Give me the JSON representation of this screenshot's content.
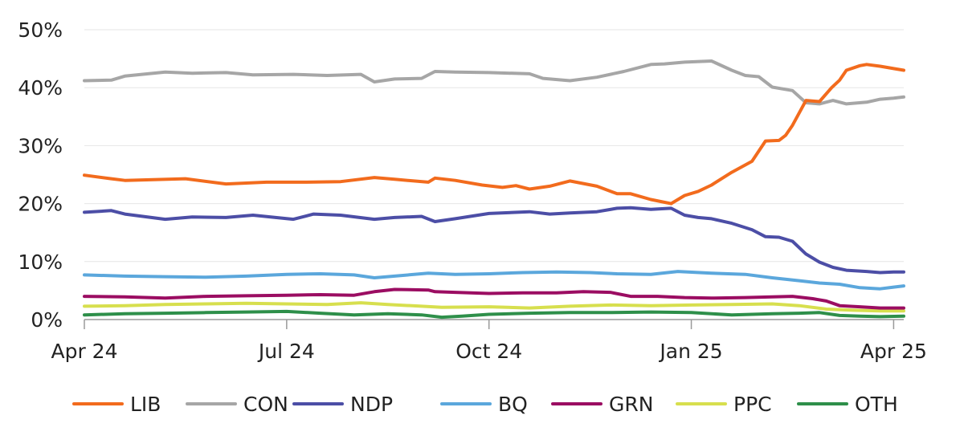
{
  "chart_data": {
    "type": "line",
    "title": "",
    "xlabel": "",
    "ylabel": "",
    "ylim": [
      0,
      50
    ],
    "y_ticks": [
      {
        "value": 0,
        "label": "0%"
      },
      {
        "value": 10,
        "label": "10%"
      },
      {
        "value": 20,
        "label": "20%"
      },
      {
        "value": 30,
        "label": "30%"
      },
      {
        "value": 40,
        "label": "40%"
      },
      {
        "value": 50,
        "label": "50%"
      }
    ],
    "x_unit": "months since Apr 2024",
    "xlim": [
      0,
      12.15
    ],
    "x_ticks": [
      {
        "value": 0,
        "label": "Apr 24"
      },
      {
        "value": 3,
        "label": "Jul 24"
      },
      {
        "value": 6,
        "label": "Oct 24"
      },
      {
        "value": 9,
        "label": "Jan 25"
      },
      {
        "value": 12,
        "label": "Apr 25"
      }
    ],
    "grid": true,
    "legend": "bottom",
    "series": [
      {
        "name": "LIB",
        "color": "#f26b1d",
        "x": [
          0,
          0.4,
          0.6,
          1.5,
          2.1,
          2.7,
          3.3,
          3.8,
          4.3,
          4.6,
          5.1,
          5.2,
          5.5,
          5.9,
          6.2,
          6.4,
          6.6,
          6.9,
          7.2,
          7.6,
          7.9,
          8.1,
          8.4,
          8.7,
          8.9,
          9.1,
          9.3,
          9.6,
          9.9,
          10.1,
          10.3,
          10.4,
          10.5,
          10.7,
          10.9,
          11.08,
          11.2,
          11.3,
          11.5,
          11.6,
          11.8,
          12.0,
          12.15
        ],
        "y": [
          24.9,
          24.3,
          24.0,
          24.3,
          23.4,
          23.7,
          23.7,
          23.8,
          24.5,
          24.2,
          23.7,
          24.4,
          24.0,
          23.2,
          22.8,
          23.1,
          22.5,
          23.0,
          23.9,
          23.0,
          21.7,
          21.7,
          20.7,
          20.0,
          21.4,
          22.1,
          23.2,
          25.4,
          27.3,
          30.8,
          30.9,
          31.8,
          33.5,
          37.8,
          37.6,
          40.0,
          41.3,
          43.0,
          43.8,
          44.0,
          43.7,
          43.3,
          43.0
        ]
      },
      {
        "name": "CON",
        "color": "#a6a6a6",
        "x": [
          0,
          0.4,
          0.6,
          1.2,
          1.6,
          2.1,
          2.5,
          3.1,
          3.6,
          4.1,
          4.3,
          4.6,
          5.0,
          5.2,
          5.5,
          6.0,
          6.6,
          6.8,
          7.2,
          7.6,
          8.0,
          8.4,
          8.6,
          8.9,
          9.3,
          9.6,
          9.8,
          10.0,
          10.2,
          10.5,
          10.7,
          10.9,
          11.1,
          11.3,
          11.6,
          11.8,
          12.0,
          12.15
        ],
        "y": [
          41.2,
          41.3,
          42.0,
          42.7,
          42.5,
          42.6,
          42.2,
          42.3,
          42.1,
          42.3,
          41.0,
          41.5,
          41.6,
          42.8,
          42.7,
          42.6,
          42.4,
          41.6,
          41.2,
          41.8,
          42.8,
          44.0,
          44.1,
          44.4,
          44.6,
          43.0,
          42.1,
          41.9,
          40.1,
          39.5,
          37.4,
          37.2,
          37.8,
          37.2,
          37.5,
          38.0,
          38.2,
          38.4
        ]
      },
      {
        "name": "NDP",
        "color": "#4c4ea6",
        "x": [
          0,
          0.4,
          0.6,
          1.2,
          1.6,
          2.1,
          2.5,
          3.1,
          3.4,
          3.8,
          4.3,
          4.6,
          5.0,
          5.2,
          5.5,
          6.0,
          6.6,
          6.9,
          7.2,
          7.6,
          7.9,
          8.1,
          8.4,
          8.7,
          8.9,
          9.1,
          9.3,
          9.6,
          9.9,
          10.1,
          10.3,
          10.5,
          10.7,
          10.9,
          11.1,
          11.3,
          11.6,
          11.8,
          12.0,
          12.15
        ],
        "y": [
          18.5,
          18.8,
          18.2,
          17.3,
          17.7,
          17.6,
          18.0,
          17.3,
          18.2,
          18.0,
          17.3,
          17.6,
          17.8,
          16.9,
          17.4,
          18.3,
          18.6,
          18.2,
          18.4,
          18.6,
          19.2,
          19.3,
          19.0,
          19.2,
          18.0,
          17.6,
          17.4,
          16.6,
          15.5,
          14.3,
          14.2,
          13.5,
          11.3,
          9.9,
          9.0,
          8.5,
          8.3,
          8.1,
          8.2,
          8.2
        ]
      },
      {
        "name": "BQ",
        "color": "#5ba7dc",
        "x": [
          0,
          0.6,
          1.2,
          1.8,
          2.4,
          3.0,
          3.5,
          4.0,
          4.3,
          4.6,
          5.1,
          5.5,
          6.0,
          6.5,
          7.0,
          7.5,
          7.9,
          8.4,
          8.8,
          9.3,
          9.8,
          10.2,
          10.6,
          10.9,
          11.2,
          11.5,
          11.8,
          12.0,
          12.15
        ],
        "y": [
          7.7,
          7.5,
          7.4,
          7.3,
          7.5,
          7.8,
          7.9,
          7.7,
          7.2,
          7.5,
          8.0,
          7.8,
          7.9,
          8.1,
          8.2,
          8.1,
          7.9,
          7.8,
          8.3,
          8.0,
          7.8,
          7.2,
          6.7,
          6.3,
          6.1,
          5.5,
          5.3,
          5.6,
          5.8
        ]
      },
      {
        "name": "GRN",
        "color": "#9b0d62",
        "x": [
          0,
          0.6,
          1.2,
          1.8,
          2.4,
          3.0,
          3.5,
          4.0,
          4.3,
          4.6,
          5.1,
          5.2,
          5.5,
          6.0,
          6.5,
          7.0,
          7.4,
          7.8,
          8.1,
          8.5,
          8.9,
          9.3,
          9.8,
          10.2,
          10.5,
          10.8,
          11.0,
          11.2,
          11.5,
          11.8,
          12.15
        ],
        "y": [
          4.0,
          3.9,
          3.7,
          4.0,
          4.1,
          4.2,
          4.3,
          4.2,
          4.8,
          5.2,
          5.1,
          4.8,
          4.7,
          4.5,
          4.6,
          4.6,
          4.8,
          4.7,
          4.0,
          4.0,
          3.8,
          3.7,
          3.8,
          3.9,
          4.0,
          3.6,
          3.2,
          2.4,
          2.2,
          2.0,
          2.0
        ]
      },
      {
        "name": "PPC",
        "color": "#d7df4e",
        "x": [
          0,
          0.6,
          1.2,
          1.8,
          2.4,
          3.0,
          3.6,
          4.1,
          4.5,
          5.0,
          5.3,
          6.0,
          6.6,
          7.2,
          7.8,
          8.4,
          9.0,
          9.6,
          10.2,
          10.6,
          11.0,
          11.4,
          11.8,
          12.15
        ],
        "y": [
          2.3,
          2.4,
          2.6,
          2.7,
          2.8,
          2.7,
          2.6,
          2.9,
          2.6,
          2.3,
          2.1,
          2.2,
          2.0,
          2.3,
          2.5,
          2.4,
          2.5,
          2.6,
          2.7,
          2.4,
          1.8,
          1.6,
          1.5,
          1.5
        ]
      },
      {
        "name": "OTH",
        "color": "#2e8f4a",
        "x": [
          0,
          0.6,
          1.2,
          1.8,
          2.4,
          3.0,
          3.5,
          4.0,
          4.5,
          5.0,
          5.3,
          5.6,
          6.0,
          6.6,
          7.2,
          7.8,
          8.4,
          9.0,
          9.6,
          10.2,
          10.6,
          10.9,
          11.2,
          11.5,
          11.8,
          12.15
        ],
        "y": [
          0.8,
          1.0,
          1.1,
          1.2,
          1.3,
          1.4,
          1.1,
          0.8,
          1.0,
          0.8,
          0.4,
          0.6,
          0.9,
          1.1,
          1.2,
          1.2,
          1.3,
          1.2,
          0.8,
          1.0,
          1.1,
          1.2,
          0.7,
          0.6,
          0.5,
          0.6
        ]
      }
    ]
  }
}
